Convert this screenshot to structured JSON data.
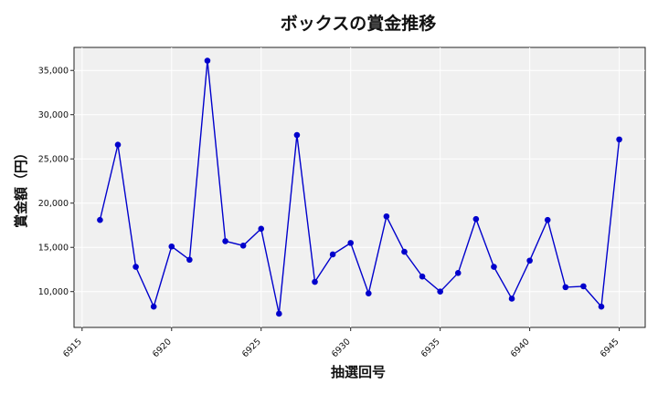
{
  "chart_data": {
    "type": "line",
    "title": "ボックスの賞金推移",
    "xlabel": "抽選回号",
    "ylabel": "賞金額（円）",
    "x": [
      6916,
      6917,
      6918,
      6919,
      6920,
      6921,
      6922,
      6923,
      6924,
      6925,
      6926,
      6927,
      6928,
      6929,
      6930,
      6931,
      6932,
      6933,
      6934,
      6935,
      6936,
      6937,
      6938,
      6939,
      6940,
      6941,
      6942,
      6943,
      6944,
      6945
    ],
    "series": [
      {
        "values": [
          18100,
          26600,
          12800,
          8300,
          15100,
          13600,
          36100,
          15700,
          15200,
          17100,
          7500,
          27700,
          11100,
          14200,
          15500,
          9800,
          18500,
          14500,
          11700,
          10000,
          12100,
          18200,
          12800,
          9200,
          13500,
          18100,
          10500,
          10600,
          8300,
          27200
        ],
        "color": "#0000cc"
      }
    ],
    "xticks": [
      6915,
      6920,
      6925,
      6930,
      6935,
      6940,
      6945
    ],
    "xtick_labels": [
      "6915",
      "6920",
      "6925",
      "6930",
      "6935",
      "6940",
      "6945"
    ],
    "yticks": [
      10000,
      15000,
      20000,
      25000,
      30000,
      35000
    ],
    "ytick_labels": [
      "10,000",
      "15,000",
      "20,000",
      "25,000",
      "30,000",
      "35,000"
    ],
    "xlim": [
      6914.55,
      6946.45
    ],
    "ylim": [
      5950,
      37600
    ],
    "grid": true,
    "background": "#f0f0f0"
  }
}
